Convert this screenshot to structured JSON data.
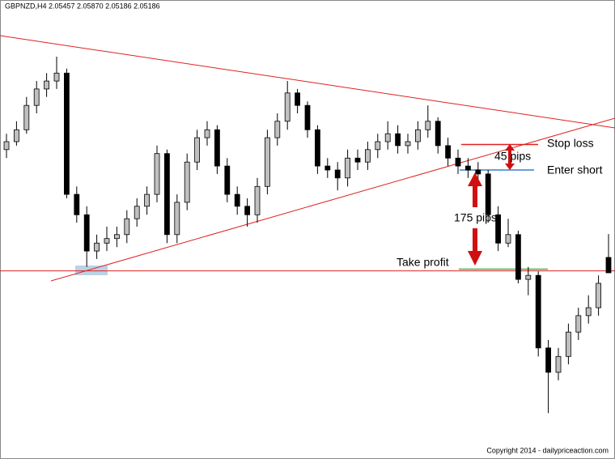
{
  "chart_data": {
    "type": "candlestick",
    "header": "GBPNZD,H4 2.05457 2.05870 2.05186 2.05186",
    "copyright": "Copyright 2014 - dailypriceaction.com",
    "ylim": [
      2.019,
      2.1
    ],
    "up_color": "#c0c0c0",
    "down_color": "#000000",
    "open": [
      2.0736,
      2.075,
      2.0771,
      2.0814,
      2.0843,
      2.0857,
      2.0871,
      2.0657,
      2.0621,
      2.0557,
      2.0571,
      2.0579,
      2.0586,
      2.0614,
      2.0636,
      2.0657,
      2.0729,
      2.0586,
      2.0643,
      2.0714,
      2.0757,
      2.0771,
      2.0707,
      2.0657,
      2.0636,
      2.0621,
      2.0671,
      2.0757,
      2.0786,
      2.0836,
      2.0814,
      2.0771,
      2.0707,
      2.07,
      2.0686,
      2.0721,
      2.0714,
      2.0736,
      2.075,
      2.0764,
      2.0743,
      2.075,
      2.0771,
      2.0786,
      2.0743,
      2.0721,
      2.0707,
      2.07,
      2.0693,
      2.0621,
      2.0571,
      2.0586,
      2.0507,
      2.0514,
      2.0386,
      2.0343,
      2.0371,
      2.0414,
      2.0443,
      2.0457,
      2.05457
    ],
    "high": [
      2.0764,
      2.0786,
      2.0829,
      2.0857,
      2.0871,
      2.09,
      2.0879,
      2.0671,
      2.0636,
      2.0586,
      2.06,
      2.06,
      2.0629,
      2.065,
      2.0671,
      2.0743,
      2.0736,
      2.0657,
      2.0729,
      2.0771,
      2.0786,
      2.0779,
      2.0721,
      2.0671,
      2.065,
      2.0686,
      2.0771,
      2.08,
      2.0857,
      2.0843,
      2.0821,
      2.0779,
      2.0721,
      2.0714,
      2.0736,
      2.0736,
      2.075,
      2.0764,
      2.0786,
      2.0779,
      2.0764,
      2.0786,
      2.0814,
      2.0793,
      2.0757,
      2.0736,
      2.0721,
      2.0714,
      2.07,
      2.0636,
      2.0614,
      2.0593,
      2.0529,
      2.0521,
      2.04,
      2.0386,
      2.0429,
      2.0457,
      2.0479,
      2.0514,
      2.0587
    ],
    "low": [
      2.0721,
      2.0743,
      2.0764,
      2.08,
      2.0829,
      2.0843,
      2.065,
      2.0607,
      2.0529,
      2.0543,
      2.0557,
      2.0564,
      2.0571,
      2.06,
      2.0621,
      2.0643,
      2.0571,
      2.0571,
      2.0629,
      2.07,
      2.0743,
      2.0693,
      2.0643,
      2.0621,
      2.06,
      2.0607,
      2.0657,
      2.0743,
      2.0771,
      2.08,
      2.0757,
      2.0693,
      2.0686,
      2.0664,
      2.0671,
      2.07,
      2.07,
      2.0721,
      2.0736,
      2.0729,
      2.0729,
      2.0736,
      2.0757,
      2.0729,
      2.0707,
      2.0693,
      2.0686,
      2.0671,
      2.0607,
      2.0557,
      2.0564,
      2.05,
      2.0479,
      2.0371,
      2.0271,
      2.0329,
      2.0357,
      2.04,
      2.0429,
      2.0443,
      2.05186
    ],
    "close": [
      2.075,
      2.0771,
      2.0814,
      2.0843,
      2.0857,
      2.0871,
      2.0657,
      2.0621,
      2.0557,
      2.0571,
      2.0579,
      2.0586,
      2.0614,
      2.0636,
      2.0657,
      2.0729,
      2.0586,
      2.0643,
      2.0714,
      2.0757,
      2.0771,
      2.0707,
      2.0657,
      2.0636,
      2.0621,
      2.0671,
      2.0757,
      2.0786,
      2.0836,
      2.0814,
      2.0771,
      2.0707,
      2.07,
      2.0686,
      2.0721,
      2.0714,
      2.0736,
      2.075,
      2.0764,
      2.0743,
      2.075,
      2.0771,
      2.0786,
      2.0743,
      2.0721,
      2.0707,
      2.07,
      2.0693,
      2.0621,
      2.0571,
      2.0586,
      2.0507,
      2.0514,
      2.0386,
      2.0343,
      2.0371,
      2.0414,
      2.0443,
      2.0457,
      2.05,
      2.05186
    ],
    "levels": [
      {
        "name": "Stop loss",
        "value": 2.0745,
        "color": "#e02020"
      },
      {
        "name": "Enter short",
        "value": 2.07,
        "color": "#3a7fc8"
      },
      {
        "name": "Take profit",
        "value": 2.0525,
        "color": "#3cb043"
      },
      {
        "value": 2.0522,
        "color": "#e02020"
      }
    ],
    "annotations": [
      "45 pips",
      "175 pips"
    ]
  }
}
